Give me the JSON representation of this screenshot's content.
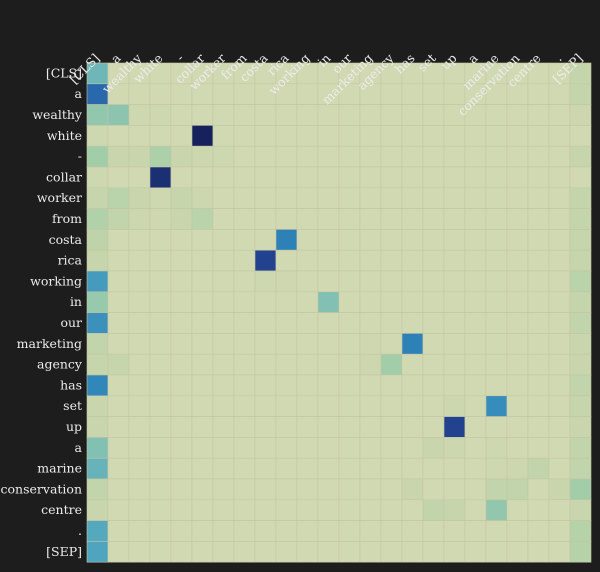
{
  "chart_data": {
    "type": "heatmap",
    "title": "",
    "xlabel": "",
    "ylabel": "",
    "x_tokens": [
      "[CLS]",
      "a",
      "wealthy",
      "white",
      "-",
      "collar",
      "worker",
      "from",
      "costa",
      "rica",
      "working",
      "in",
      "our",
      "marketing",
      "agency",
      "has",
      "set",
      "up",
      "a",
      "marine",
      "conservation",
      "centre",
      ".",
      "[SEP]"
    ],
    "y_tokens": [
      "[CLS]",
      "a",
      "wealthy",
      "white",
      "-",
      "collar",
      "worker",
      "from",
      "costa",
      "rica",
      "working",
      "in",
      "our",
      "marketing",
      "agency",
      "has",
      "set",
      "up",
      "a",
      "marine",
      "conservation",
      "centre",
      ".",
      "[SEP]"
    ],
    "color_scale": {
      "name": "YlGnBu",
      "stops": [
        "#d9dcb7",
        "#c6d5ab",
        "#a6cfa8",
        "#7fbfb4",
        "#51a7bf",
        "#2d83b8",
        "#24489a",
        "#16215e"
      ]
    },
    "values": [
      [
        0.48,
        0.06,
        0.06,
        0.06,
        0.06,
        0.06,
        0.06,
        0.06,
        0.06,
        0.06,
        0.06,
        0.06,
        0.06,
        0.06,
        0.06,
        0.06,
        0.06,
        0.06,
        0.06,
        0.06,
        0.06,
        0.06,
        0.06,
        0.15
      ],
      [
        0.78,
        0.06,
        0.06,
        0.06,
        0.06,
        0.06,
        0.06,
        0.06,
        0.06,
        0.06,
        0.06,
        0.06,
        0.06,
        0.06,
        0.06,
        0.06,
        0.06,
        0.06,
        0.06,
        0.06,
        0.06,
        0.06,
        0.06,
        0.15
      ],
      [
        0.36,
        0.38,
        0.08,
        0.08,
        0.06,
        0.06,
        0.06,
        0.06,
        0.06,
        0.06,
        0.06,
        0.06,
        0.06,
        0.06,
        0.06,
        0.06,
        0.06,
        0.06,
        0.06,
        0.06,
        0.06,
        0.06,
        0.06,
        0.1
      ],
      [
        0.08,
        0.06,
        0.06,
        0.06,
        0.06,
        1.0,
        0.06,
        0.06,
        0.06,
        0.06,
        0.06,
        0.06,
        0.06,
        0.06,
        0.06,
        0.06,
        0.06,
        0.06,
        0.06,
        0.06,
        0.06,
        0.06,
        0.06,
        0.06
      ],
      [
        0.3,
        0.12,
        0.12,
        0.26,
        0.12,
        0.1,
        0.08,
        0.06,
        0.06,
        0.06,
        0.06,
        0.06,
        0.06,
        0.06,
        0.06,
        0.06,
        0.06,
        0.06,
        0.06,
        0.06,
        0.06,
        0.06,
        0.06,
        0.14
      ],
      [
        0.08,
        0.06,
        0.06,
        0.95,
        0.06,
        0.06,
        0.06,
        0.06,
        0.06,
        0.06,
        0.06,
        0.06,
        0.06,
        0.06,
        0.06,
        0.06,
        0.06,
        0.06,
        0.06,
        0.06,
        0.06,
        0.06,
        0.06,
        0.06
      ],
      [
        0.14,
        0.2,
        0.12,
        0.08,
        0.14,
        0.1,
        0.06,
        0.06,
        0.06,
        0.06,
        0.06,
        0.06,
        0.06,
        0.06,
        0.06,
        0.06,
        0.06,
        0.06,
        0.06,
        0.06,
        0.06,
        0.06,
        0.06,
        0.15
      ],
      [
        0.24,
        0.16,
        0.1,
        0.08,
        0.12,
        0.2,
        0.06,
        0.06,
        0.06,
        0.06,
        0.06,
        0.06,
        0.06,
        0.06,
        0.06,
        0.06,
        0.06,
        0.06,
        0.06,
        0.06,
        0.06,
        0.06,
        0.06,
        0.15
      ],
      [
        0.18,
        0.06,
        0.06,
        0.06,
        0.06,
        0.06,
        0.06,
        0.06,
        0.06,
        0.72,
        0.06,
        0.06,
        0.06,
        0.06,
        0.06,
        0.06,
        0.06,
        0.06,
        0.06,
        0.06,
        0.06,
        0.06,
        0.06,
        0.14
      ],
      [
        0.14,
        0.06,
        0.06,
        0.06,
        0.06,
        0.06,
        0.06,
        0.06,
        0.88,
        0.06,
        0.06,
        0.06,
        0.06,
        0.06,
        0.06,
        0.06,
        0.06,
        0.06,
        0.06,
        0.06,
        0.06,
        0.06,
        0.06,
        0.14
      ],
      [
        0.62,
        0.06,
        0.06,
        0.06,
        0.06,
        0.06,
        0.06,
        0.06,
        0.08,
        0.08,
        0.06,
        0.06,
        0.06,
        0.06,
        0.06,
        0.06,
        0.06,
        0.06,
        0.06,
        0.06,
        0.06,
        0.06,
        0.06,
        0.2
      ],
      [
        0.34,
        0.06,
        0.06,
        0.06,
        0.06,
        0.06,
        0.06,
        0.06,
        0.06,
        0.06,
        0.06,
        0.42,
        0.06,
        0.06,
        0.06,
        0.06,
        0.06,
        0.06,
        0.06,
        0.06,
        0.06,
        0.06,
        0.06,
        0.15
      ],
      [
        0.66,
        0.06,
        0.06,
        0.06,
        0.06,
        0.06,
        0.06,
        0.06,
        0.06,
        0.06,
        0.06,
        0.06,
        0.06,
        0.06,
        0.06,
        0.06,
        0.06,
        0.06,
        0.06,
        0.06,
        0.06,
        0.06,
        0.06,
        0.16
      ],
      [
        0.16,
        0.06,
        0.06,
        0.06,
        0.06,
        0.06,
        0.06,
        0.06,
        0.06,
        0.06,
        0.06,
        0.06,
        0.06,
        0.08,
        0.06,
        0.72,
        0.06,
        0.06,
        0.06,
        0.06,
        0.06,
        0.06,
        0.06,
        0.12
      ],
      [
        0.14,
        0.14,
        0.06,
        0.06,
        0.06,
        0.06,
        0.06,
        0.06,
        0.06,
        0.06,
        0.06,
        0.06,
        0.06,
        0.1,
        0.3,
        0.06,
        0.06,
        0.06,
        0.06,
        0.06,
        0.06,
        0.06,
        0.06,
        0.12
      ],
      [
        0.7,
        0.06,
        0.06,
        0.06,
        0.06,
        0.06,
        0.06,
        0.06,
        0.06,
        0.06,
        0.06,
        0.06,
        0.06,
        0.06,
        0.06,
        0.06,
        0.06,
        0.06,
        0.06,
        0.06,
        0.06,
        0.06,
        0.06,
        0.16
      ],
      [
        0.12,
        0.06,
        0.06,
        0.06,
        0.06,
        0.06,
        0.06,
        0.06,
        0.06,
        0.06,
        0.06,
        0.06,
        0.06,
        0.06,
        0.06,
        0.06,
        0.06,
        0.1,
        0.06,
        0.68,
        0.06,
        0.06,
        0.06,
        0.14
      ],
      [
        0.12,
        0.06,
        0.06,
        0.06,
        0.06,
        0.06,
        0.06,
        0.06,
        0.06,
        0.06,
        0.06,
        0.06,
        0.06,
        0.06,
        0.06,
        0.06,
        0.06,
        0.88,
        0.06,
        0.06,
        0.06,
        0.06,
        0.06,
        0.12
      ],
      [
        0.42,
        0.06,
        0.06,
        0.06,
        0.06,
        0.06,
        0.06,
        0.06,
        0.06,
        0.06,
        0.06,
        0.06,
        0.06,
        0.06,
        0.06,
        0.06,
        0.12,
        0.1,
        0.06,
        0.08,
        0.06,
        0.06,
        0.06,
        0.16
      ],
      [
        0.5,
        0.06,
        0.06,
        0.06,
        0.06,
        0.06,
        0.06,
        0.06,
        0.06,
        0.06,
        0.06,
        0.06,
        0.06,
        0.06,
        0.06,
        0.06,
        0.06,
        0.06,
        0.06,
        0.08,
        0.1,
        0.16,
        0.06,
        0.16
      ],
      [
        0.16,
        0.06,
        0.06,
        0.06,
        0.06,
        0.06,
        0.06,
        0.06,
        0.06,
        0.06,
        0.06,
        0.06,
        0.06,
        0.06,
        0.06,
        0.12,
        0.06,
        0.06,
        0.06,
        0.16,
        0.16,
        0.06,
        0.12,
        0.3
      ],
      [
        0.12,
        0.06,
        0.06,
        0.06,
        0.06,
        0.06,
        0.06,
        0.06,
        0.06,
        0.06,
        0.06,
        0.06,
        0.06,
        0.06,
        0.06,
        0.06,
        0.16,
        0.14,
        0.06,
        0.36,
        0.06,
        0.06,
        0.06,
        0.12
      ],
      [
        0.56,
        0.06,
        0.06,
        0.06,
        0.06,
        0.06,
        0.06,
        0.06,
        0.06,
        0.06,
        0.06,
        0.06,
        0.06,
        0.06,
        0.06,
        0.06,
        0.06,
        0.06,
        0.06,
        0.06,
        0.06,
        0.06,
        0.06,
        0.22
      ],
      [
        0.58,
        0.06,
        0.06,
        0.06,
        0.06,
        0.06,
        0.06,
        0.06,
        0.06,
        0.06,
        0.06,
        0.06,
        0.06,
        0.06,
        0.06,
        0.06,
        0.06,
        0.06,
        0.06,
        0.06,
        0.06,
        0.06,
        0.06,
        0.22
      ]
    ],
    "grid": true,
    "legend": "none"
  }
}
